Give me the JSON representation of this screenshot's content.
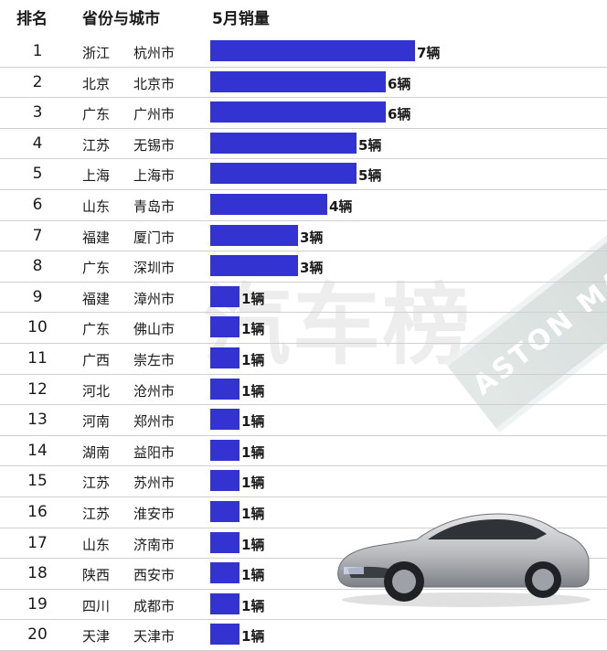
{
  "header": {
    "rank": "排名",
    "region": "省份与城市",
    "metric": "5月销量"
  },
  "watermark_text": "汽车榜",
  "brand_band_text": "ASTON MAR",
  "unit": "辆",
  "chart_data": {
    "type": "bar",
    "orientation": "horizontal",
    "title": "",
    "xlabel": "",
    "ylabel": "",
    "xlim": [
      0,
      7
    ],
    "bar_color": "#3333d1",
    "columns": [
      "排名",
      "省份与城市",
      "5月销量"
    ],
    "rows": [
      {
        "rank": "1",
        "province": "浙江",
        "city": "杭州市",
        "value": 7,
        "label": "7辆"
      },
      {
        "rank": "2",
        "province": "北京",
        "city": "北京市",
        "value": 6,
        "label": "6辆"
      },
      {
        "rank": "3",
        "province": "广东",
        "city": "广州市",
        "value": 6,
        "label": "6辆"
      },
      {
        "rank": "4",
        "province": "江苏",
        "city": "无锡市",
        "value": 5,
        "label": "5辆"
      },
      {
        "rank": "5",
        "province": "上海",
        "city": "上海市",
        "value": 5,
        "label": "5辆"
      },
      {
        "rank": "6",
        "province": "山东",
        "city": "青岛市",
        "value": 4,
        "label": "4辆"
      },
      {
        "rank": "7",
        "province": "福建",
        "city": "厦门市",
        "value": 3,
        "label": "3辆"
      },
      {
        "rank": "8",
        "province": "广东",
        "city": "深圳市",
        "value": 3,
        "label": "3辆"
      },
      {
        "rank": "9",
        "province": "福建",
        "city": "漳州市",
        "value": 1,
        "label": "1辆"
      },
      {
        "rank": "10",
        "province": "广东",
        "city": "佛山市",
        "value": 1,
        "label": "1辆"
      },
      {
        "rank": "11",
        "province": "广西",
        "city": "崇左市",
        "value": 1,
        "label": "1辆"
      },
      {
        "rank": "12",
        "province": "河北",
        "city": "沧州市",
        "value": 1,
        "label": "1辆"
      },
      {
        "rank": "13",
        "province": "河南",
        "city": "郑州市",
        "value": 1,
        "label": "1辆"
      },
      {
        "rank": "14",
        "province": "湖南",
        "city": "益阳市",
        "value": 1,
        "label": "1辆"
      },
      {
        "rank": "15",
        "province": "江苏",
        "city": "苏州市",
        "value": 1,
        "label": "1辆"
      },
      {
        "rank": "16",
        "province": "江苏",
        "city": "淮安市",
        "value": 1,
        "label": "1辆"
      },
      {
        "rank": "17",
        "province": "山东",
        "city": "济南市",
        "value": 1,
        "label": "1辆"
      },
      {
        "rank": "18",
        "province": "陕西",
        "city": "西安市",
        "value": 1,
        "label": "1辆"
      },
      {
        "rank": "19",
        "province": "四川",
        "city": "成都市",
        "value": 1,
        "label": "1辆"
      },
      {
        "rank": "20",
        "province": "天津",
        "city": "天津市",
        "value": 1,
        "label": "1辆"
      }
    ]
  }
}
